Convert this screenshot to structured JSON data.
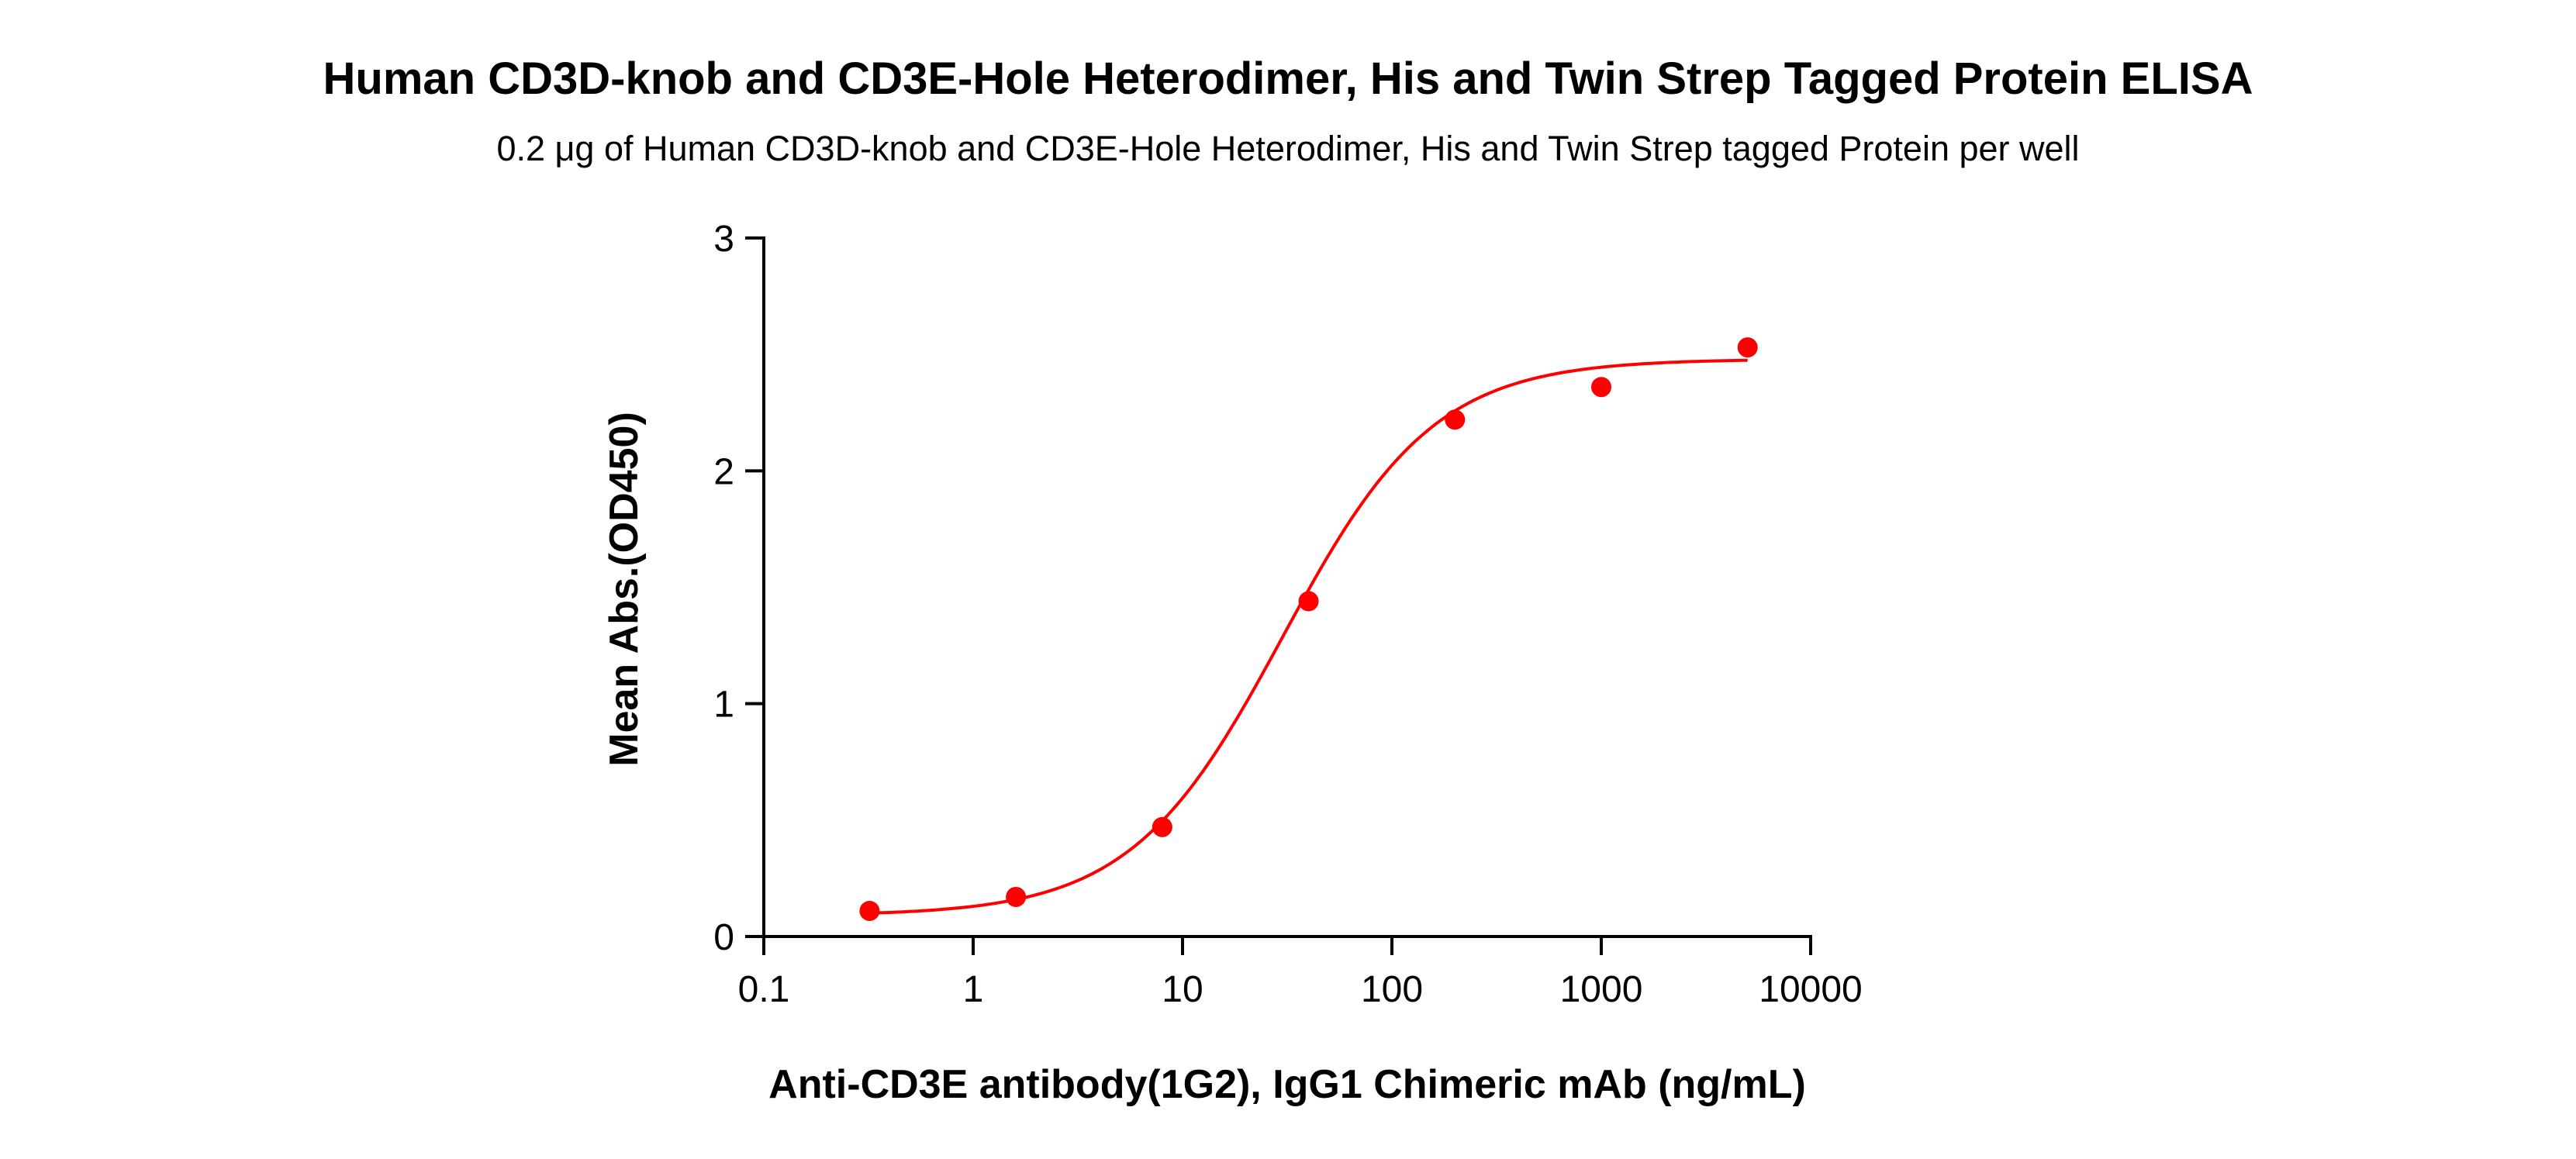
{
  "chart_data": {
    "type": "scatter",
    "title": "Human CD3D-knob and CD3E-Hole Heterodimer, His and Twin Strep Tagged Protein ELISA",
    "subtitle": "0.2 μg of Human CD3D-knob and CD3E-Hole Heterodimer, His and Twin Strep tagged Protein per well",
    "xlabel": "Anti-CD3E antibody(1G2), IgG1 Chimeric mAb (ng/mL)",
    "ylabel": "Mean Abs.(OD450)",
    "xscale": "log",
    "xlim": [
      0.1,
      10000
    ],
    "ylim": [
      0,
      3
    ],
    "xticks": [
      "0.1",
      "1",
      "10",
      "100",
      "1000",
      "10000"
    ],
    "yticks": [
      "0",
      "1",
      "2",
      "3"
    ],
    "grid": false,
    "color": "#ff0000",
    "points": {
      "x": [
        0.32,
        1.6,
        8,
        40,
        200,
        1000,
        5000
      ],
      "y": [
        0.11,
        0.17,
        0.47,
        1.44,
        2.22,
        2.36,
        2.53
      ]
    },
    "fit": {
      "model": "4PL",
      "bottom": 0.09,
      "top": 2.48,
      "ec50": 30,
      "hill": 1.2,
      "x_range": [
        0.32,
        5000
      ]
    }
  }
}
